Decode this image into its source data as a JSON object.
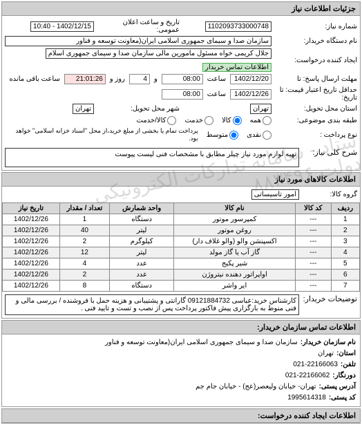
{
  "panel1_title": "جزئیات اطلاعات نیاز",
  "row_number_label": "شماره نیاز:",
  "row_number_value": "1102093733000748",
  "announce_label": "تاریخ و ساعت اعلان عمومی:",
  "announce_value": "1402/12/15 - 10:40",
  "buyer_org_label": "نام دستگاه خریدار:",
  "buyer_org_value": "سازمان صدا و سیمای جمهوری اسلامی ایران(معاونت توسعه و فناور",
  "requester_label": "ایجاد کننده درخواست:",
  "requester_value": "جلال کریمی خواه مسئول مامورین مالی  سازمان صدا و سیمای جمهوری اسلام",
  "contact_badge": "اطلاعات تماس خریدار",
  "deadline_send_label": "مهلت ارسال پاسخ: تا",
  "deadline_send_date": "1402/12/20",
  "time_label": "ساعت",
  "deadline_send_time": "08:00",
  "and_label": "و",
  "remain_days": "4",
  "day_label": "روز و",
  "remain_time": "21:01:26",
  "remain_label": "ساعت باقی مانده",
  "validity_label": "حداقل تاریخ اعتبار قیمت: تا تاریخ:",
  "validity_date": "1402/12/26",
  "validity_time": "08:00",
  "province_label": "استان محل تحویل:",
  "province_value": "تهران",
  "city_label": "شهر محل تحویل:",
  "city_value": "تهران",
  "group_label": "طبقه بندی موضوعی:",
  "radio_all": "همه",
  "radio_goods": "کالا",
  "radio_service": "خدمت",
  "radio_goods_service": "کالا/خدمت",
  "payment_label": "نوع پرداخت :",
  "radio_cash": "نقدی",
  "radio_medium": "متوسط",
  "payment_note": "پرداخت تمام یا بخشی از مبلغ خرید،از محل \"اسناد خزانه اسلامی\" خواهد بود.",
  "desc_label": "شرح کلی نیاز:",
  "desc_value": "تهیه لوازم مورد نیاز چیلر مطابق با مشخصات فنی لیست پیوست",
  "panel2_title": "اطلاعات کالاهای مورد نیاز",
  "goods_group_label": "گروه کالا:",
  "goods_group_value": "امور تاسیساتی",
  "table": {
    "columns": [
      "ردیف",
      "کد کالا",
      "نام کالا",
      "واحد شمارش",
      "تعداد / مقدار",
      "تاریخ نیاز"
    ],
    "col_widths": [
      "8%",
      "10%",
      "34%",
      "18%",
      "14%",
      "16%"
    ],
    "rows": [
      [
        "1",
        "---",
        "کمپرسور موتور",
        "دستگاه",
        "1",
        "1402/12/26"
      ],
      [
        "2",
        "---",
        "روغن موتور",
        "لیتر",
        "40",
        "1402/12/26"
      ],
      [
        "3",
        "---",
        "اکسپنشن والو (والو غلاف دار)",
        "کیلوگرم",
        "2",
        "1402/12/26"
      ],
      [
        "4",
        "---",
        "گاز آب یا گاز مولد",
        "لیتر",
        "12",
        "1402/12/26"
      ],
      [
        "5",
        "---",
        "شیر پکیج",
        "عدد",
        "4",
        "1402/12/26"
      ],
      [
        "6",
        "---",
        "اواپراتور دهنده نیتروژن",
        "عدد",
        "2",
        "1402/12/26"
      ],
      [
        "7",
        "---",
        "ایر واشر",
        "دستگاه",
        "8",
        "1402/12/26"
      ]
    ]
  },
  "buyer_desc_label": "توضیحات خریدار:",
  "buyer_desc_value": "کارشناس خرید:عباسی 09121884732 گارانتی و پشتیبانی و هزینه حمل با فروشنده / بررسی مالی و فنی منوط به بارگزاری پیش فاکتور پرداخت پس از نصب و تست و تایید فنی .",
  "panel3_title": "اطلاعات تماس سازمان خریدار:",
  "c_org_label": "نام سازمان خریدار:",
  "c_org_value": "سازمان صدا و سیمای جمهوری اسلامی ایران(معاونت توسعه و فناور",
  "c_province_label": "استان:",
  "c_province_value": "تهران",
  "c_tel_label": "تلفن:",
  "c_tel_value": "021-22166063",
  "c_fax_label": "دورنگار:",
  "c_fax_value": "021-22166062",
  "c_postal_label": "آدرس پستی:",
  "c_postal_value": "تهران- خیابان ولیعصر(عج) - خیابان جام جم",
  "c_postcode_label": "کد پستی:",
  "c_postcode_value": "1995614318",
  "panel4_title": "اطلاعات ایجاد کننده درخواست:",
  "watermark_text": "ستاد - سامانه تدارکات الکترونیکی دولت ۸۸۳۴۹۶"
}
